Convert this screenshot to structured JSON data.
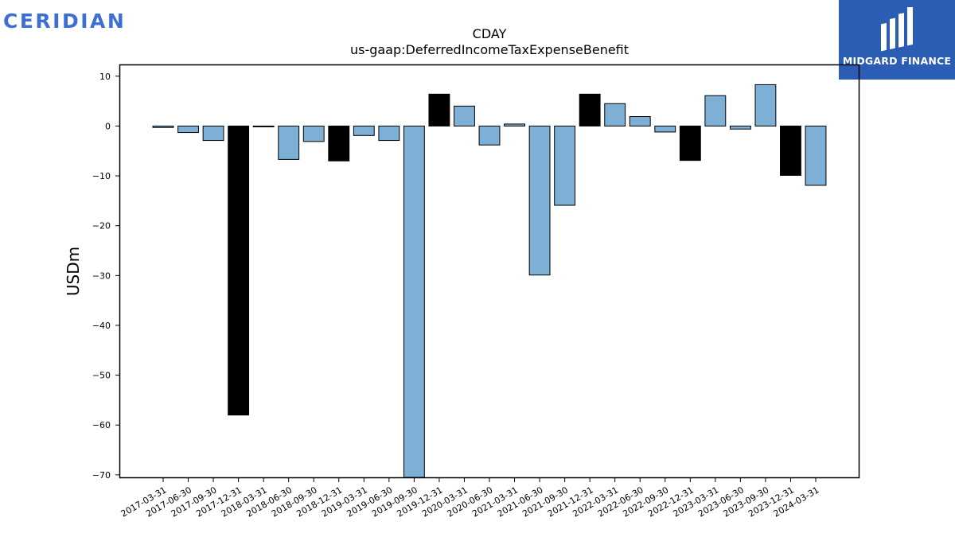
{
  "brand": {
    "left_logo_text": "CERIDIAN",
    "right_logo_text": "MIDGARD FINANCE",
    "right_logo_bg": "#2b5db5",
    "left_logo_color": "#3b6fd4"
  },
  "chart_data": {
    "type": "bar",
    "title": "CDAY",
    "subtitle": "us-gaap:DeferredIncomeTaxExpenseBenefit",
    "xlabel": "",
    "ylabel": "USDm",
    "ylim": [
      -70.5,
      12.2
    ],
    "yticks": [
      10,
      0,
      -10,
      -20,
      -30,
      -40,
      -50,
      -60,
      -70
    ],
    "grid": false,
    "colors": {
      "quarter": "#7eb0d5",
      "year_end": "#000000"
    },
    "categories": [
      "2017-03-31",
      "2017-06-30",
      "2017-09-30",
      "2017-12-31",
      "2018-03-31",
      "2018-06-30",
      "2018-09-30",
      "2018-12-31",
      "2019-03-31",
      "2019-06-30",
      "2019-09-30",
      "2019-12-31",
      "2020-03-31",
      "2020-06-30",
      "2021-03-31",
      "2021-06-30",
      "2021-09-30",
      "2021-12-31",
      "2022-03-31",
      "2022-06-30",
      "2022-09-30",
      "2022-12-31",
      "2023-03-31",
      "2023-06-30",
      "2023-09-30",
      "2023-12-31",
      "2024-03-31"
    ],
    "values": [
      -0.3,
      -1.3,
      -2.9,
      -58.0,
      -0.1,
      -6.7,
      -3.1,
      -7.0,
      -1.9,
      -2.9,
      -71.0,
      6.4,
      4.0,
      -3.8,
      0.4,
      -29.9,
      -15.9,
      6.4,
      4.5,
      1.9,
      -1.2,
      -6.9,
      6.1,
      -0.6,
      8.3,
      -9.9,
      -11.9
    ],
    "year_end": [
      false,
      false,
      false,
      true,
      false,
      false,
      false,
      true,
      false,
      false,
      false,
      true,
      false,
      false,
      false,
      false,
      false,
      true,
      false,
      false,
      false,
      true,
      false,
      false,
      false,
      true,
      false
    ]
  }
}
